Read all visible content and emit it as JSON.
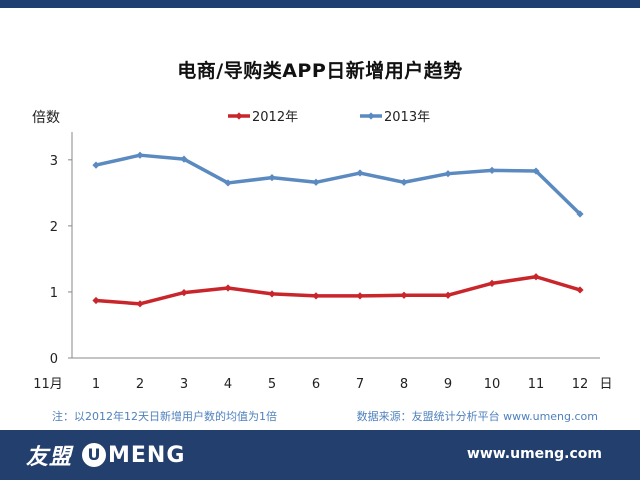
{
  "chart_data": {
    "type": "line",
    "title": "电商/导购类APP日新增用户趋势",
    "ylabel": "倍数",
    "xlabel": "日",
    "x_start_label": "11月",
    "categories": [
      "1",
      "2",
      "3",
      "4",
      "5",
      "6",
      "7",
      "8",
      "9",
      "10",
      "11",
      "12"
    ],
    "ylim": [
      0,
      3.3
    ],
    "yticks": [
      "0",
      "1",
      "2",
      "3"
    ],
    "grid": false,
    "legend": "top",
    "series": [
      {
        "name": "2012年",
        "color": "#c9262c",
        "values": [
          0.87,
          0.82,
          0.99,
          1.06,
          0.97,
          0.94,
          0.94,
          0.95,
          0.95,
          1.13,
          1.23,
          1.03
        ]
      },
      {
        "name": "2013年",
        "color": "#5b8ac0",
        "values": [
          2.92,
          3.07,
          3.01,
          2.65,
          2.73,
          2.66,
          2.8,
          2.66,
          2.79,
          2.84,
          2.83,
          2.18
        ]
      }
    ]
  },
  "footnote": {
    "left": "注：以2012年12天日新增用户数的均值为1倍",
    "right": "数据来源：友盟统计分析平台 www.umeng.com"
  },
  "footer": {
    "brand_cn": "友盟",
    "brand_u": "U",
    "brand_en": "MENG",
    "url": "www.umeng.com"
  }
}
